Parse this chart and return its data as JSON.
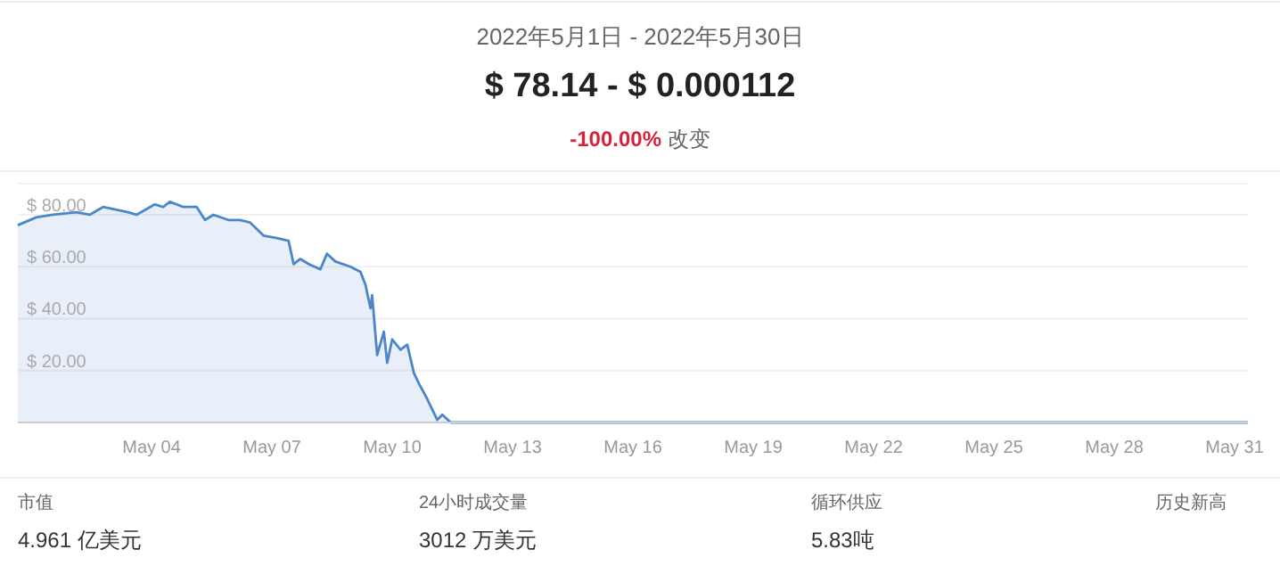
{
  "chart_data": {
    "type": "area",
    "title": "2022年5月1日 - 2022年5月30日",
    "subtitle": "$ 78.14 - $ 0.000112",
    "annotations": [
      "-100.00% 改变",
      "市值",
      "4.961 亿美元",
      "24小时成交量",
      "3012 万美元",
      "循环供应",
      "5.83吨",
      "历史新高"
    ],
    "x": [
      "2022-04-30T16:00",
      "2022-05-01T03:00",
      "2022-05-01T13:00",
      "2022-05-02T03:00",
      "2022-05-02T11:00",
      "2022-05-02T19:00",
      "2022-05-03T10:00",
      "2022-05-03T15:00",
      "2022-05-04T02:00",
      "2022-05-04T07:00",
      "2022-05-04T11:00",
      "2022-05-04T19:00",
      "2022-05-05T03:00",
      "2022-05-05T08:00",
      "2022-05-05T13:00",
      "2022-05-05T22:00",
      "2022-05-06T05:00",
      "2022-05-06T11:00",
      "2022-05-06T19:00",
      "2022-05-07T03:00",
      "2022-05-07T10:00",
      "2022-05-07T13:00",
      "2022-05-07T17:00",
      "2022-05-07T22:00",
      "2022-05-08T05:00",
      "2022-05-08T09:00",
      "2022-05-08T14:00",
      "2022-05-08T23:00",
      "2022-05-09T05:00",
      "2022-05-09T08:00",
      "2022-05-09T11:00",
      "2022-05-09T12:00",
      "2022-05-09T15:00",
      "2022-05-09T19:00",
      "2022-05-09T21:00",
      "2022-05-10T00:00",
      "2022-05-10T05:00",
      "2022-05-10T09:00",
      "2022-05-10T13:00",
      "2022-05-10T16:00",
      "2022-05-10T21:00",
      "2022-05-11T03:00",
      "2022-05-11T06:00",
      "2022-05-11T11:00",
      "2022-05-11T21:00",
      "2022-05-13T00:00",
      "2022-05-20T00:00",
      "2022-05-31T08:00"
    ],
    "series": [
      {
        "color": "#4a86c8",
        "values": [
          76,
          79,
          80,
          81,
          80,
          83,
          81,
          80,
          84,
          83,
          85,
          83,
          83,
          78,
          80,
          78,
          78,
          77,
          72,
          71,
          70,
          61,
          63,
          61,
          59,
          65,
          62,
          60,
          58,
          53,
          44,
          49,
          26,
          35,
          23,
          32,
          28,
          30,
          19,
          15,
          9,
          1,
          3,
          0,
          0,
          0,
          0,
          0
        ]
      }
    ],
    "xlim": [
      "2022-04-30T16:00",
      "2022-05-31T08:00"
    ],
    "xticks": [
      {
        "value": "2022-05-04",
        "label": "May 04"
      },
      {
        "value": "2022-05-07",
        "label": "May 07"
      },
      {
        "value": "2022-05-10",
        "label": "May 10"
      },
      {
        "value": "2022-05-13",
        "label": "May 13"
      },
      {
        "value": "2022-05-16",
        "label": "May 16"
      },
      {
        "value": "2022-05-19",
        "label": "May 19"
      },
      {
        "value": "2022-05-22",
        "label": "May 22"
      },
      {
        "value": "2022-05-25",
        "label": "May 25"
      },
      {
        "value": "2022-05-28",
        "label": "May 28"
      },
      {
        "value": "2022-05-31",
        "label": "May 31"
      }
    ],
    "ylim": [
      0,
      92
    ],
    "yticks": [
      {
        "value": 20,
        "label": "$ 20.00"
      },
      {
        "value": 40,
        "label": "$ 40.00"
      },
      {
        "value": 60,
        "label": "$ 60.00"
      },
      {
        "value": 80,
        "label": "$ 80.00"
      }
    ],
    "grid": "y",
    "marker": "none",
    "line_style": "solid"
  }
}
